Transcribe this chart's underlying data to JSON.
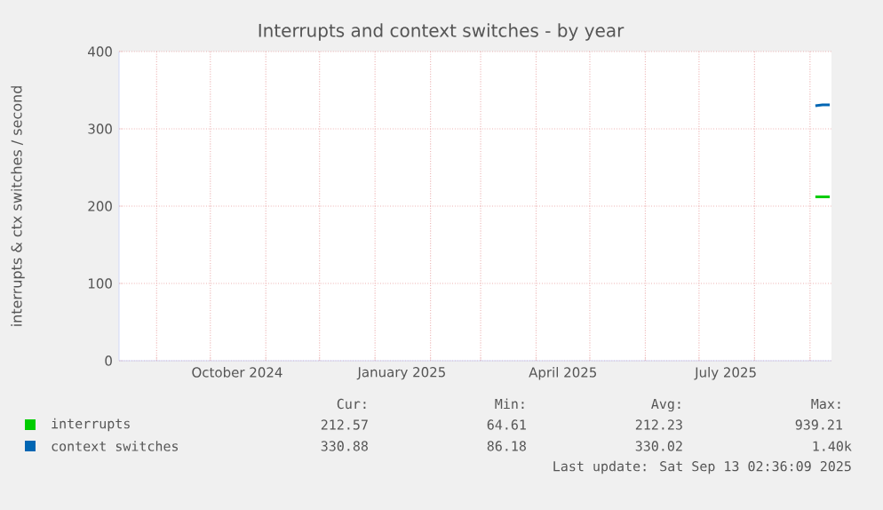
{
  "chart_data": {
    "type": "line",
    "title": "Interrupts and context switches - by year",
    "ylabel": "interrupts & ctx switches / second",
    "x": [
      "2025-09-04",
      "2025-09-08",
      "2025-09-12"
    ],
    "series": [
      {
        "name": "interrupts",
        "color": "#00cc00",
        "values": [
          212,
          212,
          212
        ]
      },
      {
        "name": "context switches",
        "color": "#0066b3",
        "values": [
          330,
          331,
          331
        ]
      }
    ],
    "xlim": [
      "2024-08-11",
      "2025-09-13"
    ],
    "xticks": [
      {
        "value": "2024-09-01",
        "label": null
      },
      {
        "value": "2024-10-01",
        "label": null
      },
      {
        "value": "2024-11-01",
        "label": null
      },
      {
        "value": "2024-12-01",
        "label": null
      },
      {
        "value": "2025-01-01",
        "label": null
      },
      {
        "value": "2025-02-01",
        "label": null
      },
      {
        "value": "2025-03-01",
        "label": null
      },
      {
        "value": "2025-04-01",
        "label": null
      },
      {
        "value": "2025-05-01",
        "label": null
      },
      {
        "value": "2025-06-01",
        "label": null
      },
      {
        "value": "2025-07-01",
        "label": null
      },
      {
        "value": "2025-08-01",
        "label": null
      },
      {
        "value": "2025-09-01",
        "label": null
      },
      {
        "value": "2024-10-16",
        "label": "October 2024"
      },
      {
        "value": "2025-01-16",
        "label": "January 2025"
      },
      {
        "value": "2025-04-16",
        "label": "April 2025"
      },
      {
        "value": "2025-07-16",
        "label": "July 2025"
      }
    ],
    "ylim": [
      0,
      400
    ],
    "yticks": [
      0,
      100,
      200,
      300,
      400
    ],
    "grid": true,
    "legend": "bottom",
    "annotations": [
      "Cur:",
      "Min:",
      "Avg:",
      "Max:",
      "212.57",
      "64.61",
      "212.23",
      "939.21",
      "330.88",
      "86.18",
      "330.02",
      "1.40k",
      "Last update: Sat Sep 13 02:36:09 2025"
    ]
  }
}
